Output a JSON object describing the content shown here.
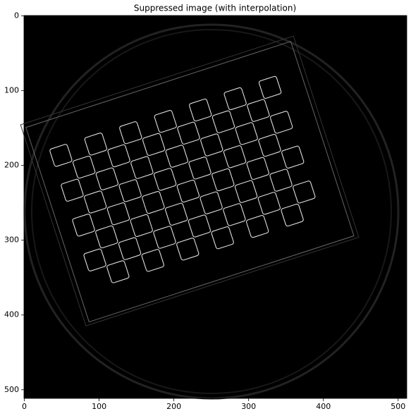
{
  "chart_data": {
    "type": "image",
    "title": "Suppressed image (with interpolation)",
    "xlim": [
      -0.5,
      511.5
    ],
    "ylim": [
      511.5,
      -0.5
    ],
    "xticks": [
      0,
      100,
      200,
      300,
      400,
      500
    ],
    "yticks": [
      0,
      100,
      200,
      300,
      400,
      500
    ]
  }
}
